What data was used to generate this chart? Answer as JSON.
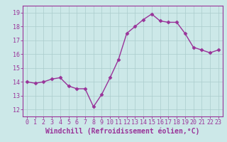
{
  "hours": [
    0,
    1,
    2,
    3,
    4,
    5,
    6,
    7,
    8,
    9,
    10,
    11,
    12,
    13,
    14,
    15,
    16,
    17,
    18,
    19,
    20,
    21,
    22,
    23
  ],
  "values": [
    14.0,
    13.9,
    14.0,
    14.2,
    14.3,
    13.7,
    13.5,
    13.5,
    12.2,
    13.1,
    14.3,
    15.6,
    17.5,
    18.0,
    18.5,
    18.9,
    18.4,
    18.3,
    18.3,
    17.5,
    16.5,
    16.3,
    16.1,
    16.3
  ],
  "line_color": "#993399",
  "marker": "D",
  "marker_size": 2.5,
  "bg_color": "#cce8e8",
  "grid_color": "#aacccc",
  "xlabel": "Windchill (Refroidissement éolien,°C)",
  "xlabel_color": "#993399",
  "xlim": [
    -0.5,
    23.5
  ],
  "ylim": [
    11.5,
    19.5
  ],
  "yticks": [
    12,
    13,
    14,
    15,
    16,
    17,
    18,
    19
  ],
  "xticks": [
    0,
    1,
    2,
    3,
    4,
    5,
    6,
    7,
    8,
    9,
    10,
    11,
    12,
    13,
    14,
    15,
    16,
    17,
    18,
    19,
    20,
    21,
    22,
    23
  ],
  "tick_color": "#993399",
  "tick_labelsize": 6,
  "xlabel_fontsize": 7,
  "spine_color": "#993399",
  "linewidth": 1.0
}
